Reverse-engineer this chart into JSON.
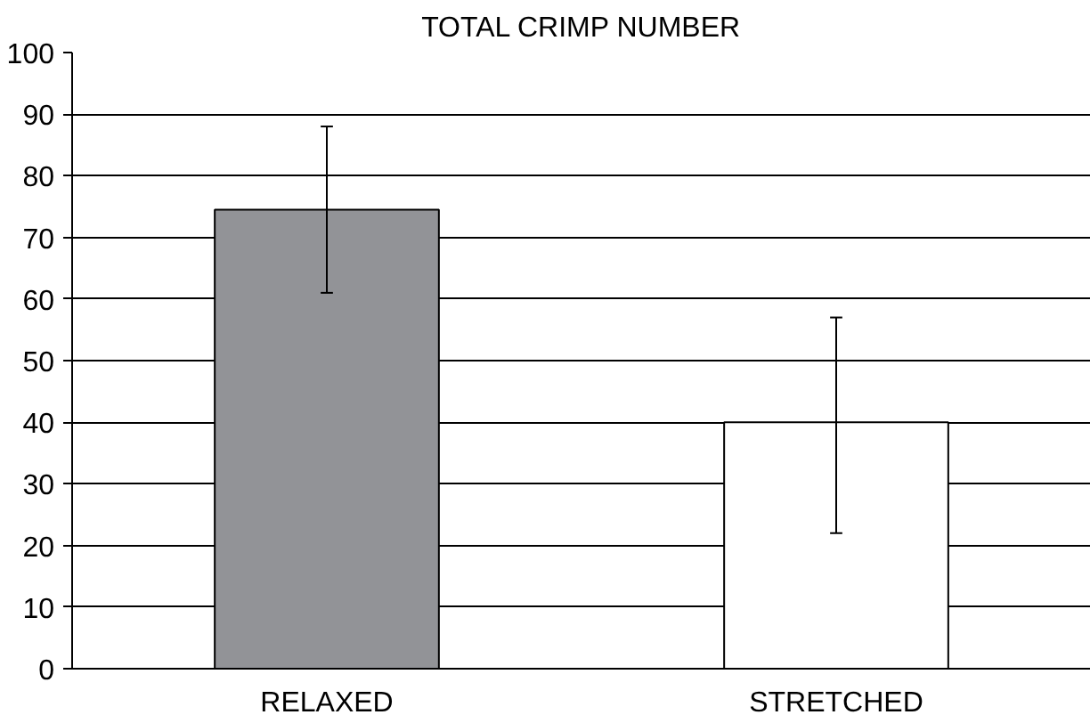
{
  "chart_data": {
    "type": "bar",
    "title": "TOTAL CRIMP NUMBER",
    "categories": [
      "RELAXED",
      "STRETCHED"
    ],
    "values": [
      74.5,
      40
    ],
    "colors": [
      "#929397",
      "#ffffff"
    ],
    "errors": [
      [
        61,
        88
      ],
      [
        22,
        57
      ]
    ],
    "ylim": [
      0,
      100
    ],
    "yticks": [
      0,
      10,
      20,
      30,
      40,
      50,
      60,
      70,
      80,
      90,
      100
    ],
    "grid": "y"
  }
}
